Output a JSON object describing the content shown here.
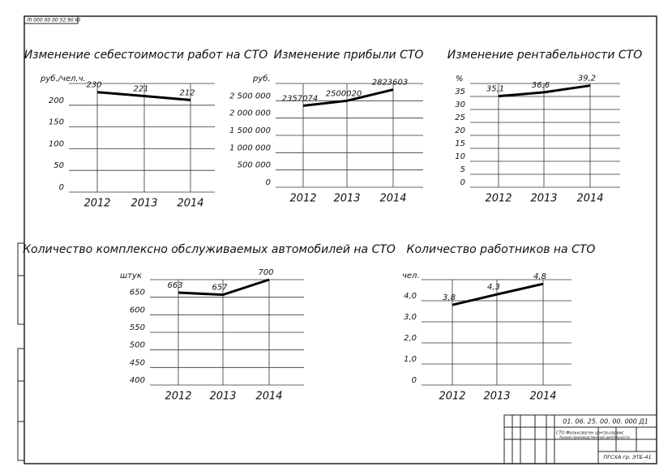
{
  "sheet": {
    "stamp": "ЛI 000 00 00 52 90 Ю",
    "code": "01. 06. 25. 00. 00. 000 Д1",
    "org": "ПГСХА гр. ЭТБ-41",
    "subject": "СТО Фольксваген центр-сервис",
    "doc": "Анализ производственной деятельности"
  },
  "chart_data": [
    {
      "type": "line",
      "title": "Изменение себестоимости работ на СТО",
      "y_label": "руб./чел.ч.",
      "categories": [
        "2012",
        "2013",
        "2014"
      ],
      "values": [
        230,
        221,
        212
      ],
      "color": "#000000",
      "ylim": [
        0,
        250
      ],
      "yticks": [
        0,
        50,
        100,
        150,
        200
      ],
      "grid": true
    },
    {
      "type": "line",
      "title": "Изменение прибыли СТО",
      "y_label": "руб.",
      "categories": [
        "2012",
        "2013",
        "2014"
      ],
      "values": [
        2357074,
        2500020,
        2823603
      ],
      "color": "#000000",
      "ylim": [
        0,
        3000000
      ],
      "yticks": [
        0,
        {
          "value": 500000,
          "label": "500 000"
        },
        {
          "value": 1000000,
          "label": "1 000 000"
        },
        {
          "value": 1500000,
          "label": "1 500 000"
        },
        {
          "value": 2000000,
          "label": "2 000 000"
        },
        {
          "value": 2500000,
          "label": "2 500 000"
        }
      ],
      "grid": true
    },
    {
      "type": "line",
      "title": "Изменение рентабельности СТО",
      "y_label": "%",
      "categories": [
        "2012",
        "2013",
        "2014"
      ],
      "values": [
        35.1,
        36.6,
        39.2
      ],
      "value_labels": [
        "35,1",
        "36,6",
        "39,2"
      ],
      "color": "#000000",
      "ylim": [
        0,
        40
      ],
      "yticks": [
        0,
        5,
        10,
        15,
        20,
        25,
        30,
        35
      ],
      "grid": true
    },
    {
      "type": "line",
      "title": "Количество комплексно обслуживаемых автомобилей на СТО",
      "y_label": "штук",
      "categories": [
        "2012",
        "2013",
        "2014"
      ],
      "values": [
        663,
        657,
        700
      ],
      "color": "#000000",
      "ylim": [
        400,
        700
      ],
      "yticks": [
        400,
        450,
        500,
        550,
        600,
        650
      ],
      "grid": true
    },
    {
      "type": "line",
      "title": "Количество работников на СТО",
      "y_label": "чел.",
      "categories": [
        "2012",
        "2013",
        "2014"
      ],
      "values": [
        3.8,
        4.3,
        4.8
      ],
      "value_labels": [
        "3,8",
        "4,3",
        "4,8"
      ],
      "color": "#000000",
      "ylim": [
        0,
        5
      ],
      "yticks": [
        0,
        {
          "value": 1,
          "label": "1,0"
        },
        {
          "value": 2,
          "label": "2,0"
        },
        {
          "value": 3,
          "label": "3,0"
        },
        {
          "value": 4,
          "label": "4,0"
        }
      ],
      "grid": true
    }
  ]
}
